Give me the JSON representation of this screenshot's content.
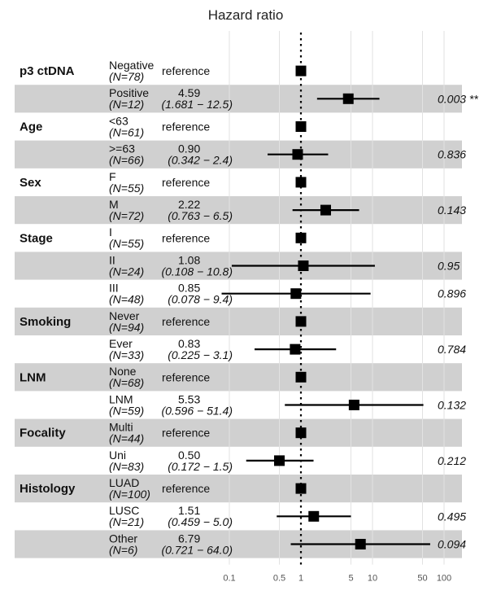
{
  "chart_data": {
    "type": "forest",
    "title": "Hazard ratio",
    "xscale": "log",
    "xlim": [
      0.1,
      100
    ],
    "reference_line": 1,
    "x_ticks": [
      {
        "value": 0.1,
        "label": "0.1"
      },
      {
        "value": 0.5,
        "label": "0.5"
      },
      {
        "value": 1,
        "label": "1"
      },
      {
        "value": 5,
        "label": "5"
      },
      {
        "value": 10,
        "label": "10"
      },
      {
        "value": 50,
        "label": "50"
      },
      {
        "value": 100,
        "label": "100"
      }
    ],
    "variables": [
      {
        "name": "p3 ctDNA",
        "rows": [
          {
            "level": "Negative",
            "n": "(N=78)",
            "hr_text": "reference",
            "hr": 1,
            "ref": true
          },
          {
            "level": "Positive",
            "n": "(N=12)",
            "hr_text": "4.59",
            "ci_text": "(1.681 − 12.5)",
            "hr": 4.59,
            "lo": 1.681,
            "hi": 12.5,
            "p": "0.003 **"
          }
        ]
      },
      {
        "name": "Age",
        "rows": [
          {
            "level": "<63",
            "n": "(N=61)",
            "hr_text": "reference",
            "hr": 1,
            "ref": true
          },
          {
            "level": ">=63",
            "n": "(N=66)",
            "hr_text": "0.90",
            "ci_text": "(0.342 − 2.4)",
            "hr": 0.9,
            "lo": 0.342,
            "hi": 2.4,
            "p": "0.836"
          }
        ]
      },
      {
        "name": "Sex",
        "rows": [
          {
            "level": "F",
            "n": "(N=55)",
            "hr_text": "reference",
            "hr": 1,
            "ref": true
          },
          {
            "level": "M",
            "n": "(N=72)",
            "hr_text": "2.22",
            "ci_text": "(0.763 − 6.5)",
            "hr": 2.22,
            "lo": 0.763,
            "hi": 6.5,
            "p": "0.143"
          }
        ]
      },
      {
        "name": "Stage",
        "rows": [
          {
            "level": "I",
            "n": "(N=55)",
            "hr_text": "reference",
            "hr": 1,
            "ref": true
          },
          {
            "level": "II",
            "n": "(N=24)",
            "hr_text": "1.08",
            "ci_text": "(0.108 − 10.8)",
            "hr": 1.08,
            "lo": 0.108,
            "hi": 10.8,
            "p": "0.95"
          },
          {
            "level": "III",
            "n": "(N=48)",
            "hr_text": "0.85",
            "ci_text": "(0.078 − 9.4)",
            "hr": 0.85,
            "lo": 0.078,
            "hi": 9.4,
            "p": "0.896"
          }
        ]
      },
      {
        "name": "Smoking",
        "rows": [
          {
            "level": "Never",
            "n": "(N=94)",
            "hr_text": "reference",
            "hr": 1,
            "ref": true
          },
          {
            "level": "Ever",
            "n": "(N=33)",
            "hr_text": "0.83",
            "ci_text": "(0.225 − 3.1)",
            "hr": 0.83,
            "lo": 0.225,
            "hi": 3.1,
            "p": "0.784"
          }
        ]
      },
      {
        "name": "LNM",
        "rows": [
          {
            "level": "None",
            "n": "(N=68)",
            "hr_text": "reference",
            "hr": 1,
            "ref": true
          },
          {
            "level": "LNM",
            "n": "(N=59)",
            "hr_text": "5.53",
            "ci_text": "(0.596 − 51.4)",
            "hr": 5.53,
            "lo": 0.596,
            "hi": 51.4,
            "p": "0.132"
          }
        ]
      },
      {
        "name": "Focality",
        "rows": [
          {
            "level": "Multi",
            "n": "(N=44)",
            "hr_text": "reference",
            "hr": 1,
            "ref": true
          },
          {
            "level": "Uni",
            "n": "(N=83)",
            "hr_text": "0.50",
            "ci_text": "(0.172 − 1.5)",
            "hr": 0.5,
            "lo": 0.172,
            "hi": 1.5,
            "p": "0.212"
          }
        ]
      },
      {
        "name": "Histology",
        "rows": [
          {
            "level": "LUAD",
            "n": "(N=100)",
            "hr_text": "reference",
            "hr": 1,
            "ref": true
          },
          {
            "level": "LUSC",
            "n": "(N=21)",
            "hr_text": "1.51",
            "ci_text": "(0.459 − 5.0)",
            "hr": 1.51,
            "lo": 0.459,
            "hi": 5.0,
            "p": "0.495"
          },
          {
            "level": "Other",
            "n": "(N=6)",
            "hr_text": "6.79",
            "ci_text": "(0.721 − 64.0)",
            "hr": 6.79,
            "lo": 0.721,
            "hi": 64.0,
            "p": "0.094"
          }
        ]
      }
    ],
    "colors": {
      "stripe": "#d0d0d0",
      "grid": "#e2e2e2",
      "marker": "#000000"
    }
  }
}
